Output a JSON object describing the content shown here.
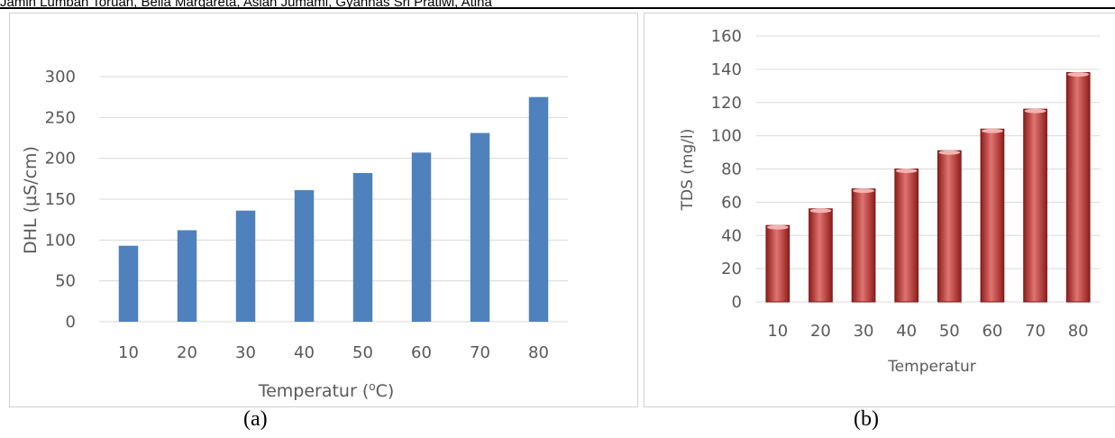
{
  "header": {
    "text": "Jamin Lumban Toruan, Bella Margareta, Asian Jumami, Gyannas Sri Pratiwi, Atina"
  },
  "captions": {
    "a": "(a)",
    "b": "(b)"
  },
  "chart_data": [
    {
      "type": "bar",
      "categories": [
        "10",
        "20",
        "30",
        "40",
        "50",
        "60",
        "70",
        "80"
      ],
      "values": [
        93,
        112,
        136,
        161,
        182,
        207,
        231,
        275
      ],
      "xlabel_main": "Temperatur (",
      "xlabel_sup": "o",
      "xlabel_tail": "C)",
      "ylabel": "DHL (µS/cm)",
      "ylim": [
        0,
        300
      ],
      "yticks": [
        0,
        50,
        100,
        150,
        200,
        250,
        300
      ],
      "grid": true,
      "bar_color": "#4f81bd"
    },
    {
      "type": "bar",
      "categories": [
        "10",
        "20",
        "30",
        "40",
        "50",
        "60",
        "70",
        "80"
      ],
      "values": [
        46,
        56,
        68,
        80,
        91,
        104,
        116,
        138
      ],
      "xlabel": "Temperatur",
      "ylabel": "TDS (mg/l)",
      "ylim": [
        0,
        160
      ],
      "yticks": [
        0,
        20,
        40,
        60,
        80,
        100,
        120,
        140,
        160
      ],
      "grid": true,
      "bar_color": "#c0504d"
    }
  ]
}
